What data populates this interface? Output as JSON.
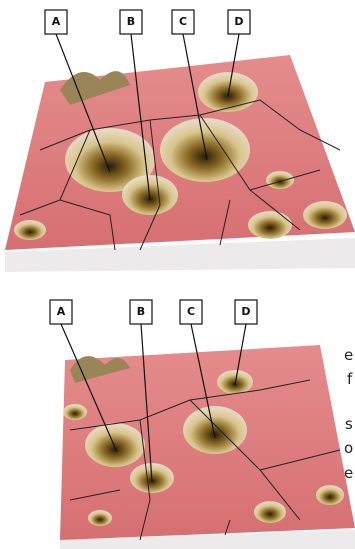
{
  "panels": [
    {
      "labels": [
        "A",
        "B",
        "C",
        "D"
      ]
    },
    {
      "labels": [
        "A",
        "B",
        "C",
        "D"
      ]
    }
  ],
  "margin_text": [
    "e",
    "f",
    "s",
    "o",
    "e"
  ]
}
